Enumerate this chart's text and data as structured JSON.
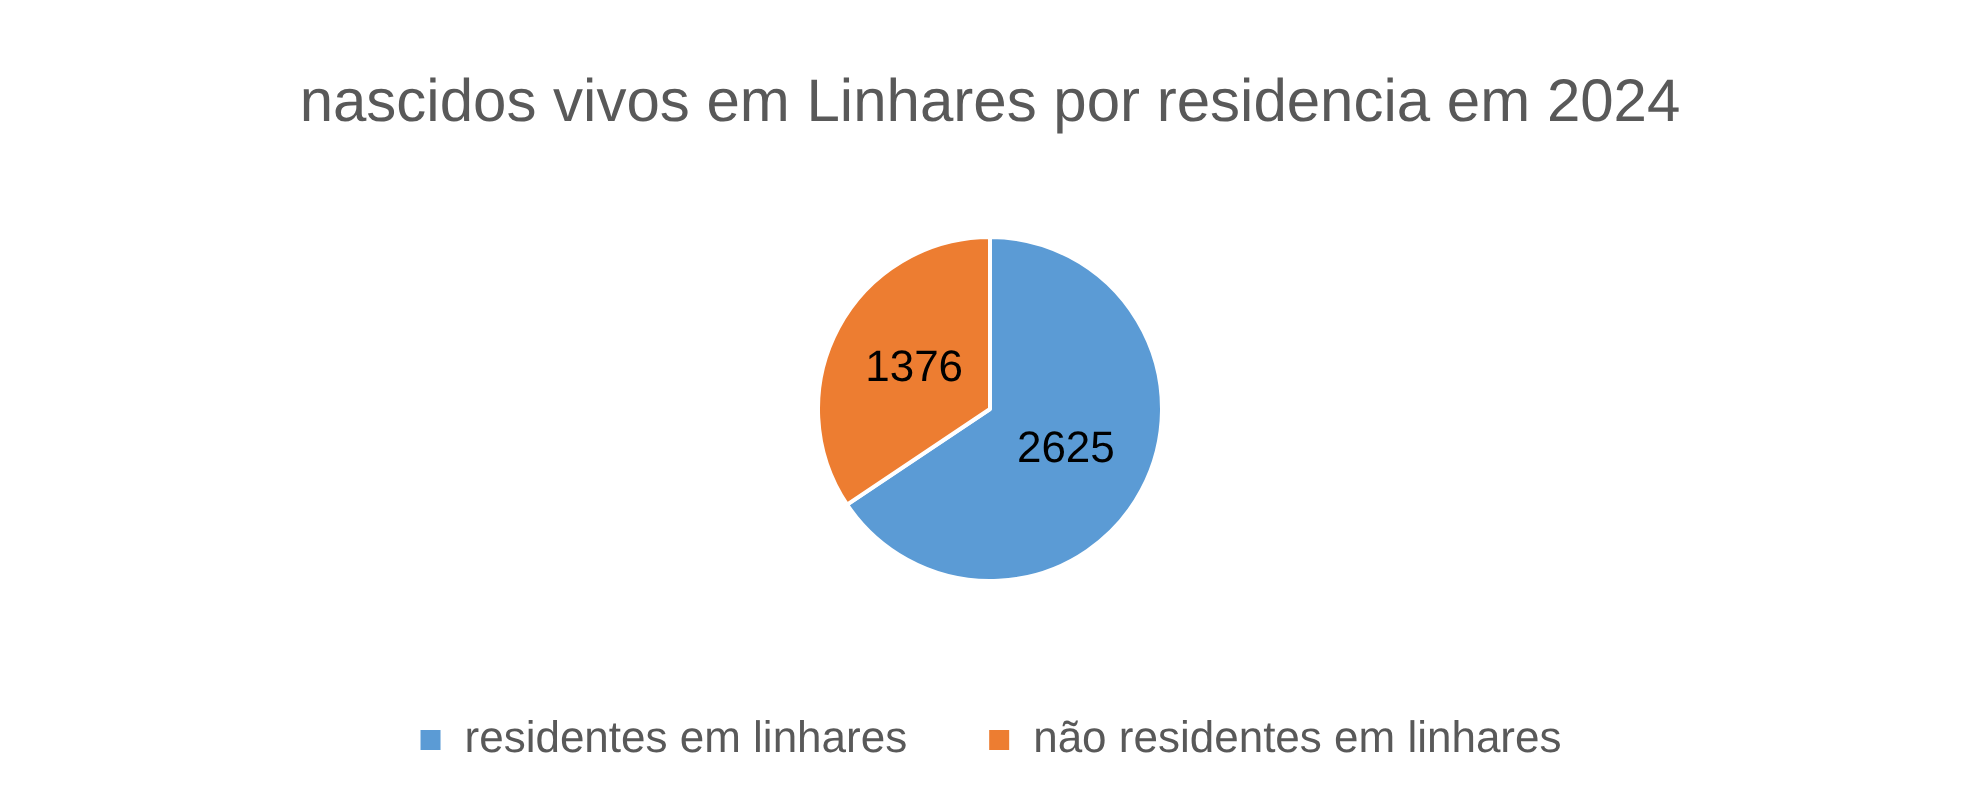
{
  "chart_data": {
    "type": "pie",
    "title": "nascidos vivos em Linhares por residencia em 2024",
    "categories": [
      "residentes em linhares",
      "não residentes em linhares"
    ],
    "values": [
      2625,
      1376
    ],
    "colors": [
      "#5b9bd5",
      "#ed7d31"
    ],
    "data_labels": true,
    "legend": "bottom"
  }
}
